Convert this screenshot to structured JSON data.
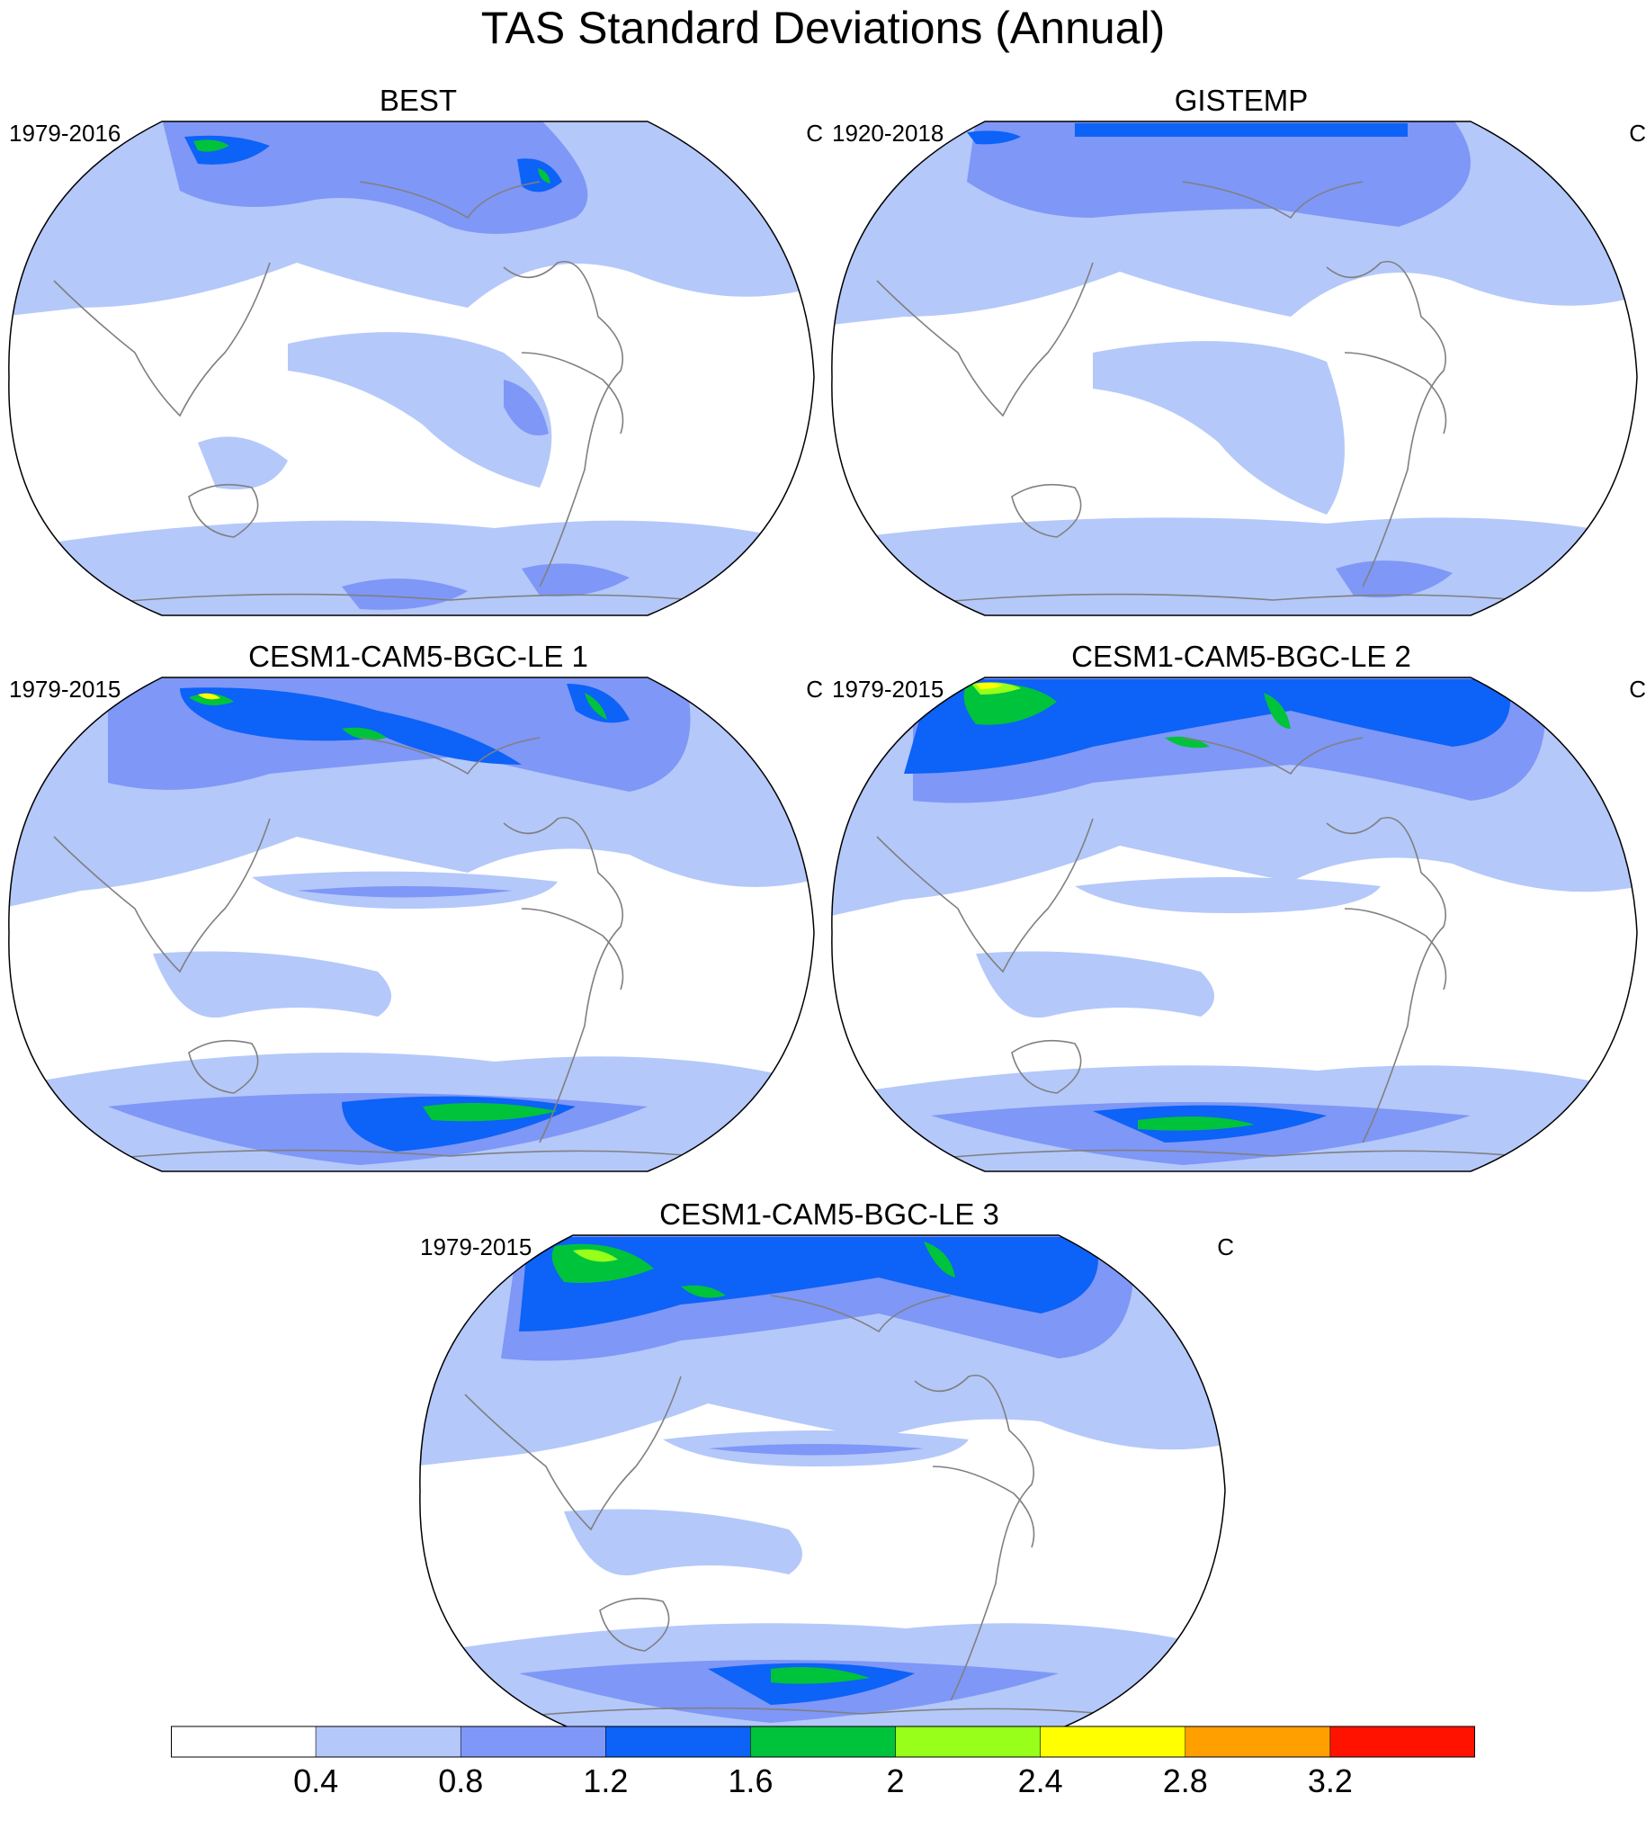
{
  "title": "TAS Standard Deviations (Annual)",
  "palette": [
    "#ffffff",
    "#b4c8fa",
    "#7f97f6",
    "#0d62f7",
    "#00c33c",
    "#97ff19",
    "#ffff00",
    "#ff9f00",
    "#ff1300"
  ],
  "panels": [
    {
      "id": "best",
      "title": "BEST",
      "left_label": "1979-2016",
      "units": "C"
    },
    {
      "id": "gistemp",
      "title": "GISTEMP",
      "left_label": "1920-2018",
      "units": "C"
    },
    {
      "id": "le1",
      "title": "CESM1-CAM5-BGC-LE 1",
      "left_label": "1979-2015",
      "units": "C"
    },
    {
      "id": "le2",
      "title": "CESM1-CAM5-BGC-LE 2",
      "left_label": "1979-2015",
      "units": "C"
    },
    {
      "id": "le3",
      "title": "CESM1-CAM5-BGC-LE 3",
      "left_label": "1979-2015",
      "units": "C"
    }
  ],
  "colorbar": {
    "levels": [
      "0.4",
      "0.8",
      "1.2",
      "1.6",
      "2",
      "2.4",
      "2.8",
      "3.2"
    ]
  }
}
